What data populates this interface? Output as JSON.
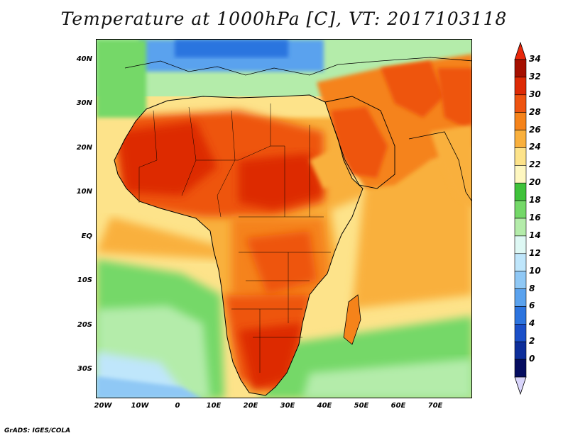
{
  "title": "Temperature at 1000hPa [C], VT: 2017103118",
  "credit": "GrADS: IGES/COLA",
  "lat_labels": [
    "40N",
    "30N",
    "20N",
    "10N",
    "EQ",
    "10S",
    "20S",
    "30S"
  ],
  "lon_labels": [
    "20W",
    "10W",
    "0",
    "10E",
    "20E",
    "30E",
    "40E",
    "50E",
    "60E",
    "70E"
  ],
  "colorbar": {
    "labels": [
      "34",
      "32",
      "30",
      "28",
      "26",
      "24",
      "22",
      "20",
      "18",
      "16",
      "14",
      "12",
      "10",
      "8",
      "6",
      "4",
      "2",
      "0"
    ],
    "colors": [
      "#a50f00",
      "#dd2a05",
      "#ee5410",
      "#f5831a",
      "#f9b03d",
      "#fde38a",
      "#fef7c0",
      "#3fc23a",
      "#74d868",
      "#b4ecaa",
      "#def8f4",
      "#bfe6fb",
      "#8fc8f5",
      "#5aa2ee",
      "#2c74df",
      "#1a4fc8",
      "#0d2e9a",
      "#050d60"
    ],
    "over_color": "#e8270b",
    "under_color": "#d9d5fb"
  },
  "map_colors": {
    "ocean_cold": "#8fc8f5",
    "ocean_cool": "#bfe6fb",
    "ocean_mild": "#74d868",
    "ocean_warm": "#f9b03d",
    "ocean_hot": "#f5831a",
    "land_hot": "#dd2a05",
    "land_warm": "#ee5410",
    "land_mild": "#fde38a",
    "europe": "#2c74df"
  }
}
